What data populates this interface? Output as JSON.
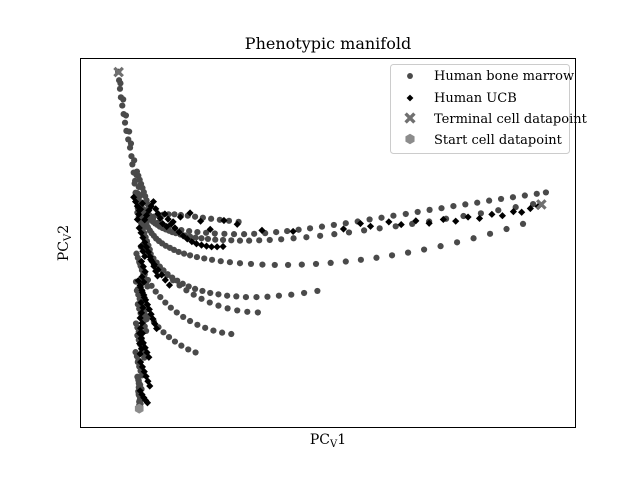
{
  "chart_data": {
    "type": "scatter",
    "title": "Phenotypic manifold",
    "xlabel": "PC",
    "xlabel_sub": "V",
    "xlabel_suffix": "1",
    "ylabel": "PC",
    "ylabel_sub": "V",
    "ylabel_suffix": "2",
    "xticks": "none",
    "yticks": "none",
    "grid": false,
    "legend_position": "top-right",
    "xlim": [
      0,
      100
    ],
    "ylim": [
      0,
      100
    ],
    "colors": {
      "bone_marrow": "#4a4a4a",
      "ucb": "#000000",
      "terminal": "#707070",
      "start": "#8c8c8c"
    },
    "series": [
      {
        "name": "Human bone marrow",
        "marker": "circle",
        "color": "#4a4a4a",
        "x": [
          4.4,
          4.6,
          4.8,
          5.0,
          5.3,
          5.6,
          5.9,
          6.2,
          6.6,
          7.0,
          7.3,
          7.5,
          7.8,
          8.1,
          4.9,
          5.5,
          6.1,
          6.8,
          7.2,
          7.9,
          8.4,
          8.9,
          9.3,
          9.8,
          10.5,
          11.2,
          12.0,
          13.0,
          14.1,
          15.4,
          16.8,
          18.2,
          19.9,
          21.7,
          23.6,
          25.5,
          27.6,
          29.7,
          31.9,
          34.1,
          36.5,
          38.9,
          41.3,
          43.8,
          46.3,
          48.9,
          51.5,
          54.1,
          56.7,
          59.3,
          61.9,
          64.5,
          67.2,
          69.8,
          72.4,
          75.0,
          77.6,
          80.2,
          82.8,
          85.4,
          88.0,
          90.6,
          93.2,
          95.8,
          97.8,
          8.6,
          8.9,
          9.2,
          9.5,
          9.8,
          10.1,
          10.4,
          10.8,
          11.2,
          11.6,
          12.0,
          12.5,
          13.0,
          13.5,
          14.1,
          14.8,
          15.5,
          16.2,
          17.0,
          18.0,
          19.0,
          20.1,
          21.3,
          22.6,
          24.0,
          25.6,
          27.3,
          29.1,
          31.0,
          33.0,
          35.2,
          37.5,
          40.0,
          42.7,
          45.5,
          48.5,
          51.6,
          54.8,
          58.1,
          61.5,
          65.0,
          68.6,
          72.3,
          76.0,
          79.8,
          83.6,
          87.4,
          91.2,
          95.0,
          9.0,
          9.4,
          9.7,
          10.0,
          10.3,
          10.6,
          10.9,
          11.3,
          11.7,
          12.2,
          12.7,
          13.3,
          14.0,
          14.8,
          15.7,
          16.6,
          17.6,
          18.8,
          20.1,
          21.6,
          23.2,
          24.9,
          26.8,
          28.8,
          31.0,
          33.4,
          35.9,
          38.6,
          41.5,
          44.5,
          47.6,
          50.8,
          54.1,
          57.4,
          60.8,
          64.2,
          67.7,
          71.2,
          74.8,
          78.4,
          82.0,
          85.6,
          89.2,
          92.8,
          8.0,
          8.2,
          8.4,
          8.7,
          9.0,
          9.3,
          9.6,
          9.9,
          10.2,
          10.6,
          11.0,
          11.5,
          12.1,
          12.8,
          13.5,
          14.3,
          15.2,
          16.2,
          17.3,
          18.5,
          19.8,
          21.2,
          22.8,
          24.5,
          26.3,
          28.2,
          30.2,
          32.3,
          34.6,
          37.0,
          39.5,
          42.2,
          45.0,
          47.9,
          9.4,
          10.1,
          10.9,
          11.8,
          12.8,
          13.9,
          15.1,
          16.4,
          17.8,
          19.3,
          20.9,
          22.6,
          24.4,
          26.3,
          28.3,
          30.4,
          32.6,
          34.9,
          9.1,
          9.6,
          10.2,
          10.9,
          11.7,
          12.6,
          13.6,
          14.7,
          15.9,
          17.2,
          18.6,
          20.1,
          21.7,
          23.4,
          25.2,
          27.1,
          29.1,
          8.3,
          8.7,
          9.2,
          9.8,
          10.5,
          11.3,
          12.2,
          13.2,
          14.3,
          15.5,
          16.8,
          18.2,
          19.7,
          21.3,
          9.7,
          10.4,
          11.2,
          12.1,
          13.1,
          14.2,
          15.4,
          16.7,
          18.1,
          19.6,
          21.2,
          22.9,
          24.7,
          26.6,
          28.6,
          30.7,
          8.5,
          8.8,
          9.1,
          9.4,
          9.7,
          10.0,
          10.3,
          10.6,
          10.9,
          11.2,
          8.6,
          8.9,
          9.2,
          9.5,
          9.8,
          10.1,
          10.4,
          10.7,
          11.0,
          11.3,
          8.4,
          8.7,
          9.0,
          9.3,
          9.6,
          9.9,
          10.2,
          10.5,
          10.8,
          8.5,
          8.8,
          9.1,
          9.4,
          9.7,
          10.0,
          10.3,
          10.6,
          8.3,
          8.6,
          8.9,
          9.2,
          9.5,
          9.8,
          10.1,
          8.7,
          9.0,
          9.3,
          9.6,
          9.9,
          10.2,
          10.5,
          8.2,
          8.5,
          8.8,
          9.1,
          9.4,
          9.7,
          8.6,
          8.9,
          9.2,
          9.5,
          9.8,
          10.1,
          8.6,
          8.9,
          9.2,
          9.5,
          8.7,
          9.0,
          9.3,
          9.6,
          8.8,
          9.1,
          9.4,
          8.9,
          9.2,
          9.5,
          9.0,
          9.3,
          8.9,
          9.2,
          8.8,
          9.1,
          8.9,
          9.0,
          8.9,
          9.1
        ],
        "y": [
          99.5,
          97.0,
          94.5,
          92.0,
          89.6,
          87.1,
          84.6,
          82.2,
          79.7,
          77.3,
          74.8,
          72.4,
          70.0,
          67.6,
          96.1,
          91.4,
          86.7,
          82.0,
          78.5,
          73.6,
          69.3,
          65.8,
          63.4,
          61.2,
          59.0,
          57.6,
          56.4,
          55.3,
          54.7,
          54.1,
          53.6,
          53.2,
          52.9,
          52.6,
          52.4,
          52.2,
          52.1,
          52.0,
          52.0,
          52.1,
          52.3,
          52.6,
          52.9,
          53.3,
          53.7,
          54.2,
          54.7,
          55.2,
          55.7,
          56.3,
          56.8,
          57.4,
          57.9,
          58.5,
          59.1,
          59.6,
          60.2,
          60.7,
          61.2,
          61.8,
          62.3,
          62.8,
          63.3,
          63.8,
          64.2,
          64.0,
          62.6,
          61.4,
          60.3,
          59.3,
          58.5,
          57.8,
          57.2,
          56.6,
          56.1,
          55.6,
          55.1,
          54.7,
          54.2,
          53.8,
          53.4,
          53.0,
          52.6,
          52.3,
          51.9,
          51.6,
          51.3,
          51.0,
          50.8,
          50.6,
          50.4,
          50.3,
          50.2,
          50.1,
          50.1,
          50.2,
          50.3,
          50.5,
          50.8,
          51.1,
          51.5,
          52.0,
          52.5,
          53.1,
          53.7,
          54.3,
          55.0,
          55.7,
          56.5,
          57.3,
          58.1,
          59.0,
          59.9,
          60.8,
          60.7,
          59.4,
          58.2,
          57.0,
          55.9,
          54.9,
          54.0,
          53.1,
          52.3,
          51.5,
          50.7,
          50.0,
          49.3,
          48.6,
          48.0,
          47.4,
          46.8,
          46.3,
          45.8,
          45.3,
          44.9,
          44.5,
          44.1,
          43.8,
          43.5,
          43.3,
          43.1,
          43.0,
          43.0,
          43.1,
          43.3,
          43.6,
          44.0,
          44.5,
          45.1,
          45.8,
          46.6,
          47.5,
          48.5,
          49.6,
          50.8,
          52.1,
          53.5,
          55.0,
          66.8,
          64.1,
          61.8,
          59.6,
          57.5,
          55.6,
          53.8,
          52.1,
          50.5,
          49.0,
          47.6,
          46.2,
          44.9,
          43.7,
          42.5,
          41.4,
          40.3,
          39.3,
          38.4,
          37.5,
          36.7,
          36.0,
          35.4,
          34.8,
          34.4,
          34.0,
          33.8,
          33.6,
          33.6,
          33.7,
          34.0,
          34.3,
          34.8,
          35.4,
          48.3,
          47.2,
          45.9,
          44.5,
          43.0,
          41.5,
          40.0,
          38.5,
          37.0,
          35.6,
          34.3,
          33.1,
          32.0,
          31.1,
          30.3,
          29.7,
          29.3,
          29.1,
          43.6,
          42.0,
          40.3,
          38.6,
          36.9,
          35.2,
          33.6,
          32.0,
          30.5,
          29.1,
          27.8,
          26.6,
          25.5,
          24.6,
          23.8,
          23.2,
          22.8,
          38.1,
          35.9,
          33.8,
          31.8,
          29.9,
          28.1,
          26.4,
          24.8,
          23.3,
          21.9,
          20.6,
          19.4,
          18.3,
          17.4,
          54.4,
          55.5,
          56.4,
          57.1,
          57.5,
          57.7,
          57.8,
          57.8,
          57.6,
          57.4,
          57.1,
          56.8,
          56.5,
          56.2,
          55.9,
          55.6,
          70.3,
          69.1,
          67.9,
          66.7,
          65.5,
          64.3,
          63.1,
          61.9,
          60.7,
          59.5,
          58.3,
          57.1,
          55.9,
          54.7,
          53.5,
          52.3,
          51.1,
          49.9,
          48.7,
          47.5,
          46.3,
          45.1,
          43.9,
          42.7,
          41.5,
          40.3,
          39.1,
          37.9,
          36.7,
          35.5,
          34.3,
          33.1,
          31.9,
          30.7,
          29.5,
          28.3,
          27.1,
          25.9,
          24.7,
          23.5,
          22.3,
          21.1,
          19.9,
          18.7,
          31.5,
          30.2,
          28.9,
          27.6,
          26.3,
          25.0,
          23.7,
          17.5,
          16.3,
          15.1,
          13.9,
          12.7,
          11.5,
          22.4,
          21.1,
          19.8,
          18.5,
          17.2,
          15.9,
          10.3,
          9.1,
          7.9,
          6.7,
          14.6,
          13.3,
          12.0,
          10.7,
          9.4,
          8.1,
          6.8,
          5.5,
          4.6,
          3.8,
          3.0,
          2.4,
          5.0,
          4.2,
          6.0,
          3.4,
          7.2,
          2.0,
          8.4,
          1.5
        ]
      },
      {
        "name": "Human UCB",
        "marker": "diamond",
        "color": "#000000",
        "x": [
          8.6,
          8.9,
          9.3,
          9.7,
          10.2,
          10.6,
          11.1,
          11.6,
          12.1,
          12.6,
          13.1,
          13.6,
          14.1,
          15.0,
          16.4,
          18.0,
          20.1,
          22.4,
          24.5,
          27.5,
          30.4,
          35.8,
          42.6,
          53.6,
          57.3,
          59.5,
          63.5,
          66.2,
          69.4,
          72.3,
          75.4,
          78.1,
          80.8,
          83.3,
          86.0,
          88.3,
          90.7,
          92.5,
          94.4,
          96.1,
          9.0,
          9.4,
          9.8,
          10.2,
          10.6,
          11.0,
          11.4,
          11.8,
          12.2,
          12.6,
          13.0,
          8.8,
          9.2,
          9.6,
          10.0,
          10.4,
          10.8,
          11.2,
          11.6,
          12.0,
          12.4,
          12.8,
          9.1,
          9.5,
          9.9,
          10.3,
          10.7,
          11.1,
          9.3,
          9.7,
          10.1,
          10.5,
          10.9,
          11.3,
          9.2,
          9.6,
          10.0,
          10.4,
          10.8,
          9.4,
          9.8,
          10.2,
          9.5,
          9.9,
          10.3,
          9.6,
          10.0,
          9.3,
          9.7,
          10.1,
          9.4,
          9.8,
          9.5,
          9.2,
          9.6,
          9.3,
          9.7,
          9.4,
          9.1,
          9.5,
          9.2,
          14.6,
          15.3,
          16.0,
          16.8,
          17.7,
          18.6,
          19.5,
          20.5,
          21.5,
          22.6,
          23.7,
          24.8,
          26.0,
          27.3,
          7.8,
          8.2,
          8.6,
          9.0,
          11.5,
          12.3,
          13.1,
          13.9,
          14.7,
          15.6
        ],
        "y": [
          56.3,
          57.8,
          59.3,
          61.0,
          56.2,
          57.5,
          58.9,
          60.2,
          61.5,
          59.4,
          58.0,
          56.6,
          55.1,
          54.2,
          55.6,
          57.0,
          58.2,
          55.8,
          53.4,
          56.0,
          54.9,
          53.1,
          52.8,
          53.5,
          55.1,
          54.3,
          55.6,
          54.8,
          55.9,
          55.2,
          56.3,
          55.8,
          57.0,
          56.6,
          57.8,
          57.4,
          58.6,
          58.4,
          59.5,
          60.1,
          53.8,
          52.4,
          51.0,
          49.6,
          48.2,
          46.8,
          45.4,
          44.0,
          42.6,
          41.2,
          39.8,
          38.4,
          37.0,
          35.6,
          34.2,
          32.8,
          31.4,
          30.0,
          28.6,
          27.2,
          25.8,
          24.4,
          23.0,
          21.6,
          20.2,
          18.8,
          17.4,
          16.0,
          14.6,
          13.2,
          11.8,
          10.4,
          9.0,
          7.6,
          6.2,
          5.1,
          4.2,
          3.4,
          2.7,
          48.5,
          47.0,
          45.5,
          44.0,
          42.5,
          41.0,
          39.5,
          38.0,
          36.5,
          35.0,
          33.5,
          32.0,
          30.5,
          29.0,
          27.5,
          26.0,
          24.5,
          23.0,
          21.5,
          20.0,
          18.5,
          17.0,
          57.9,
          56.4,
          55.0,
          53.8,
          52.6,
          51.5,
          50.6,
          49.8,
          49.2,
          48.8,
          48.5,
          48.3,
          48.3,
          48.4,
          62.8,
          61.5,
          60.2,
          58.9,
          44.6,
          43.1,
          41.6,
          40.1,
          38.6,
          37.1
        ]
      },
      {
        "name": "Terminal cell datapoint",
        "marker": "x",
        "color": "#707070",
        "x": [
          4.5,
          96.8
        ],
        "y": [
          99.4,
          60.7
        ]
      },
      {
        "name": "Start cell datapoint",
        "marker": "hexagon",
        "color": "#8c8c8c",
        "x": [
          9.0
        ],
        "y": [
          1.0
        ]
      }
    ]
  }
}
